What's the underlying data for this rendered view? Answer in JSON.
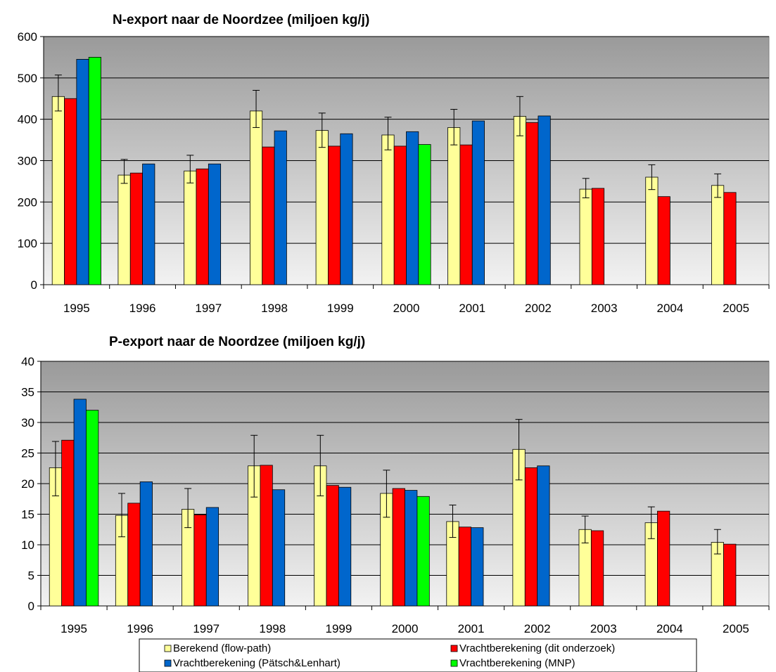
{
  "chart_data": [
    {
      "type": "bar",
      "title": "N-export naar de Noordzee (miljoen kg/j)",
      "xlabel": "",
      "ylabel": "",
      "ylim": [
        0,
        600
      ],
      "yticks": [
        0,
        100,
        200,
        300,
        400,
        500,
        600
      ],
      "grid": true,
      "categories": [
        "1995",
        "1996",
        "1997",
        "1998",
        "1999",
        "2000",
        "2001",
        "2002",
        "2003",
        "2004",
        "2005"
      ],
      "series": [
        {
          "name": "Berekend (flow-path)",
          "color": "#FFFF99",
          "values": [
            455,
            265,
            275,
            420,
            373,
            362,
            380,
            407,
            231,
            260,
            240
          ],
          "error_high": [
            507,
            303,
            313,
            470,
            415,
            405,
            424,
            455,
            257,
            290,
            268
          ],
          "error_low": [
            420,
            245,
            246,
            380,
            332,
            326,
            338,
            360,
            210,
            230,
            211
          ]
        },
        {
          "name": "Vrachtberekening (dit onderzoek)",
          "color": "#FF0000",
          "values": [
            450,
            270,
            280,
            333,
            335,
            335,
            338,
            392,
            233,
            213,
            223
          ]
        },
        {
          "name": "Vrachtberekening (Pätsch&Lenhart)",
          "color": "#0066CC",
          "values": [
            545,
            292,
            292,
            372,
            365,
            370,
            396,
            408,
            null,
            null,
            null
          ]
        },
        {
          "name": "Vrachtberekening (MNP)",
          "color": "#00FF00",
          "values": [
            550,
            null,
            null,
            null,
            null,
            339,
            null,
            null,
            null,
            null,
            null
          ]
        }
      ]
    },
    {
      "type": "bar",
      "title": "P-export naar de Noordzee (miljoen kg/j)",
      "xlabel": "",
      "ylabel": "",
      "ylim": [
        0,
        40
      ],
      "yticks": [
        0,
        5,
        10,
        15,
        20,
        25,
        30,
        35,
        40
      ],
      "grid": true,
      "categories": [
        "1995",
        "1996",
        "1997",
        "1998",
        "1999",
        "2000",
        "2001",
        "2002",
        "2003",
        "2004",
        "2005"
      ],
      "series": [
        {
          "name": "Berekend (flow-path)",
          "color": "#FFFF99",
          "values": [
            22.6,
            14.8,
            15.8,
            22.9,
            22.9,
            18.4,
            13.8,
            25.6,
            12.5,
            13.6,
            10.4
          ],
          "error_high": [
            26.9,
            18.4,
            19.2,
            27.9,
            27.9,
            22.2,
            16.5,
            30.5,
            14.7,
            16.2,
            12.5
          ],
          "error_low": [
            18.0,
            11.3,
            12.8,
            17.8,
            18.0,
            14.5,
            11.2,
            20.6,
            10.3,
            11.0,
            8.5
          ]
        },
        {
          "name": "Vrachtberekening (dit onderzoek)",
          "color": "#FF0000",
          "values": [
            27.1,
            16.8,
            14.9,
            23.0,
            19.7,
            19.2,
            12.9,
            22.6,
            12.3,
            15.5,
            10.1
          ]
        },
        {
          "name": "Vrachtberekening (Pätsch&Lenhart)",
          "color": "#0066CC",
          "values": [
            33.8,
            20.3,
            16.1,
            19.0,
            19.4,
            18.9,
            12.8,
            22.9,
            null,
            null,
            null
          ]
        },
        {
          "name": "Vrachtberekening (MNP)",
          "color": "#00FF00",
          "values": [
            32.0,
            null,
            null,
            null,
            null,
            17.9,
            null,
            null,
            null,
            null,
            null
          ]
        }
      ]
    }
  ],
  "legend": {
    "items": [
      {
        "label": "Berekend (flow-path)",
        "color": "#FFFF99"
      },
      {
        "label": "Vrachtberekening (dit onderzoek)",
        "color": "#FF0000"
      },
      {
        "label": "Vrachtberekening (Pätsch&Lenhart)",
        "color": "#0066CC"
      },
      {
        "label": "Vrachtberekening (MNP)",
        "color": "#00FF00"
      }
    ]
  }
}
